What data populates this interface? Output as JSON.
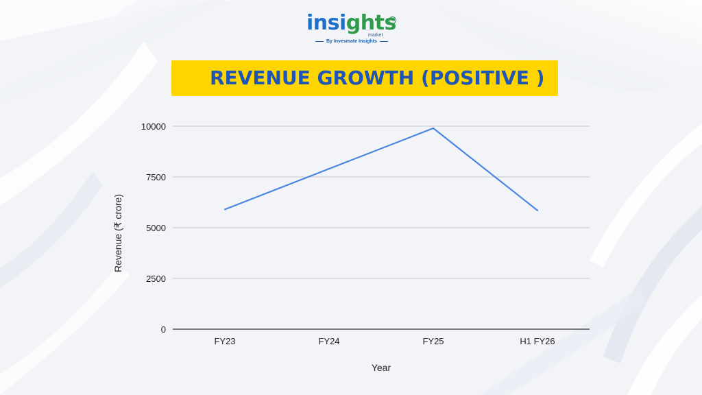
{
  "logo": {
    "word_part1": "insi",
    "word_part2": "ghts",
    "reg_mark": "®",
    "sub_word": "market",
    "tagline": "By Invesmate Insights",
    "color_blue": "#1f6ec8",
    "color_green": "#2f9a4a"
  },
  "colors": {
    "banner": "#ffd500",
    "title": "#1f55b4",
    "line": "#4a86e0",
    "grid": "#c8c8c8"
  },
  "chart_data": {
    "type": "line",
    "title": "REVENUE GROWTH (POSITIVE )",
    "xlabel": "Year",
    "ylabel": "Revenue (₹ crore)",
    "categories": [
      "FY23",
      "FY24",
      "FY25",
      "H1 FY26"
    ],
    "series": [
      {
        "name": "Revenue",
        "values": [
          5900,
          7900,
          9900,
          5850
        ]
      }
    ],
    "ylim": [
      0,
      10000
    ],
    "yticks": [
      0,
      2500,
      5000,
      7500,
      10000
    ],
    "ytick_labels": [
      "0",
      "2500",
      "5000",
      "7500",
      "10000"
    ],
    "grid": true
  }
}
